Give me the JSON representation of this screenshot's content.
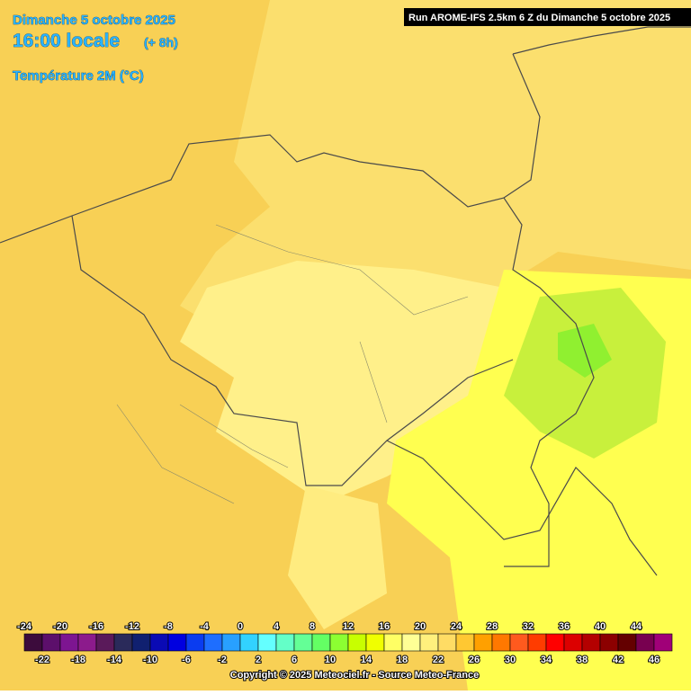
{
  "header": {
    "date": "Dimanche 5 octobre 2025",
    "time": "16:00 locale",
    "offset": "(+ 8h)",
    "variable": "Température 2M (°C)",
    "run": "Run AROME-IFS 2.5km 6 Z du Dimanche 5 octobre 2025"
  },
  "legend": {
    "colors": [
      "#3c0b3c",
      "#5c0f6b",
      "#7d1591",
      "#8c1b8c",
      "#5a1a5a",
      "#2a2a5a",
      "#102070",
      "#0a0ab4",
      "#0000e0",
      "#0a3cf0",
      "#1e6eff",
      "#28a0ff",
      "#32d2ff",
      "#64ffff",
      "#64ffc8",
      "#64ff96",
      "#64ff64",
      "#8cff32",
      "#c8ff00",
      "#f0ff00",
      "#ffff64",
      "#ffff96",
      "#fff07d",
      "#ffdc64",
      "#ffc832",
      "#ffa000",
      "#ff7800",
      "#ff5a1e",
      "#ff3c00",
      "#ff0000",
      "#dc0000",
      "#b40000",
      "#8c0000",
      "#640000",
      "#780050",
      "#a00078"
    ],
    "labels": [
      -24,
      -22,
      -20,
      -18,
      -16,
      -14,
      -12,
      -10,
      -8,
      -6,
      -4,
      -2,
      0,
      2,
      4,
      6,
      8,
      10,
      12,
      14,
      16,
      18,
      20,
      22,
      24,
      26,
      28,
      30,
      32,
      34,
      36,
      38,
      40,
      42,
      44,
      46
    ]
  },
  "footer": "Copyright © 2025 Meteociel.fr - Source Meteo-France"
}
